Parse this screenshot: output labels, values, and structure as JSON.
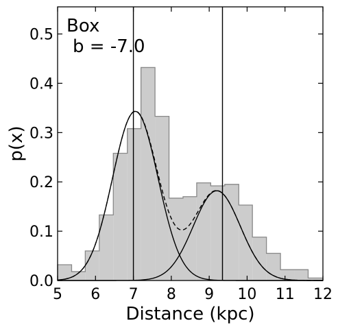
{
  "chart_data": {
    "type": "histogram",
    "annotation": {
      "line1": "Box",
      "line2": "b = -7.0"
    },
    "xlabel": "Distance (kpc)",
    "ylabel": "p(x)",
    "xlim": [
      5,
      12
    ],
    "ylim": [
      0,
      0.555
    ],
    "xticks": [
      5,
      6,
      7,
      8,
      9,
      10,
      11,
      12
    ],
    "yticks": [
      0.0,
      0.1,
      0.2,
      0.3,
      0.4,
      0.5
    ],
    "ytick_labels": [
      "0.0",
      "0.1",
      "0.2",
      "0.3",
      "0.4",
      "0.5"
    ],
    "grid": false,
    "histogram": {
      "bin_edges": [
        5.0,
        5.37,
        5.73,
        6.1,
        6.47,
        6.84,
        7.2,
        7.57,
        7.94,
        8.31,
        8.67,
        9.04,
        9.41,
        9.78,
        10.14,
        10.51,
        10.88,
        11.25,
        11.61,
        12.0
      ],
      "values": [
        0.032,
        0.018,
        0.06,
        0.133,
        0.258,
        0.308,
        0.432,
        0.333,
        0.167,
        0.17,
        0.198,
        0.192,
        0.195,
        0.153,
        0.088,
        0.055,
        0.022,
        0.022,
        0.005
      ],
      "fill": "#cccccc",
      "edge": "#888888"
    },
    "components": [
      {
        "mean": 7.05,
        "sigma": 0.6,
        "amplitude": 0.343
      },
      {
        "mean": 9.2,
        "sigma": 0.62,
        "amplitude": 0.182
      }
    ],
    "vertical_lines": [
      7.0,
      9.35
    ],
    "line_color": "#000000"
  }
}
